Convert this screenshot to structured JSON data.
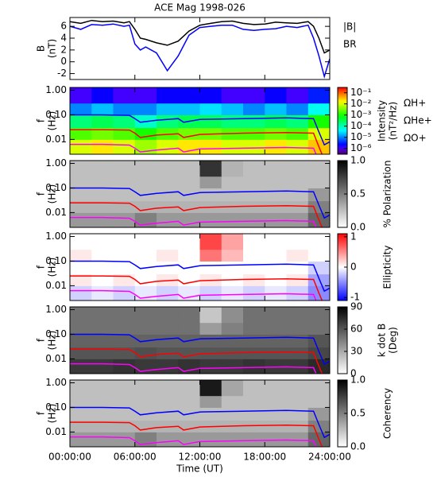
{
  "chart_data": [
    {
      "type": "line",
      "title": "ACE Mag 1998-026",
      "ylabel": [
        "B",
        "(nT)"
      ],
      "xlim": [
        0,
        24
      ],
      "xticks": [
        0,
        6,
        12,
        18,
        24
      ],
      "ylim": [
        -3,
        7.5
      ],
      "yticks": [
        -2,
        0,
        2,
        4,
        6
      ],
      "x": [
        0,
        1,
        2,
        3,
        4,
        5,
        5.5,
        6,
        6.5,
        7,
        8,
        9,
        10,
        11,
        12,
        13,
        14,
        15,
        16,
        17,
        18,
        19,
        20,
        21,
        22,
        22.5,
        23,
        23.5,
        24
      ],
      "series": [
        {
          "name": "|B|",
          "color": "#000000",
          "values": [
            6.8,
            6.5,
            7,
            6.8,
            6.9,
            6.6,
            6.8,
            5.5,
            4,
            3.8,
            3.2,
            2.8,
            3.5,
            5.2,
            6.2,
            6.5,
            6.8,
            6.9,
            6.5,
            6.3,
            6.4,
            6.7,
            6.6,
            6.5,
            6.8,
            6,
            4,
            1.5,
            2
          ]
        },
        {
          "name": "BR",
          "color": "#0000ff",
          "values": [
            6,
            5.5,
            6.3,
            6.2,
            6.4,
            6,
            6.2,
            3,
            2,
            2.5,
            1.5,
            -1.5,
            1,
            4.5,
            5.8,
            6,
            6.2,
            6.2,
            5.5,
            5.3,
            5.5,
            5.6,
            6,
            5.8,
            6.2,
            4,
            1,
            -2.5,
            0.5
          ]
        }
      ]
    },
    {
      "type": "heatmap",
      "ylabel": [
        "f",
        "(Hz)"
      ],
      "log_y": true,
      "xlim": [
        0,
        24
      ],
      "xticks": [
        0,
        6,
        12,
        18,
        24
      ],
      "ylim": [
        0.0025,
        1.3
      ],
      "yticks": [
        {
          "value": 1,
          "label": "1.00"
        },
        {
          "value": 0.1,
          "label": "0.10"
        },
        {
          "value": 0.01,
          "label": "0.01"
        }
      ],
      "xbins": [
        0,
        2,
        4,
        6,
        8,
        10,
        12,
        14,
        16,
        18,
        20,
        22,
        24
      ],
      "ybins": [
        0.0025,
        0.01,
        0.03,
        0.1,
        0.3,
        1.3
      ],
      "z": [
        [
          0.01,
          0.02,
          0.01,
          0.005,
          0.01,
          0.02,
          0.02,
          0.01,
          0.01,
          0.02,
          0.01,
          0.03
        ],
        [
          0.002,
          0.003,
          0.002,
          0.001,
          0.002,
          0.003,
          0.003,
          0.002,
          0.002,
          0.003,
          0.002,
          0.01
        ],
        [
          0.0002,
          0.0003,
          0.0002,
          8e-05,
          0.0002,
          0.0003,
          0.0003,
          0.0002,
          0.0002,
          0.0003,
          0.0002,
          0.001
        ],
        [
          1e-05,
          2e-05,
          1e-05,
          1e-05,
          2e-05,
          2e-05,
          3e-05,
          2e-05,
          1e-05,
          2e-05,
          1e-05,
          5e-05
        ],
        [
          1e-06,
          2e-06,
          1e-06,
          1e-06,
          2e-06,
          2e-06,
          2e-06,
          1e-06,
          1e-06,
          2e-06,
          1e-06,
          3e-06
        ]
      ],
      "colorbar": {
        "label": [
          "Intensity",
          "(nT²/Hz)"
        ],
        "colormap": "rainbow",
        "log": true,
        "lim": [
          3e-07,
          0.3
        ],
        "ticks": [
          {
            "value": 0.1,
            "label": "10⁻¹"
          },
          {
            "value": 0.01,
            "label": "10⁻²"
          },
          {
            "value": 0.001,
            "label": "10⁻³"
          },
          {
            "value": 0.0001,
            "label": "10⁻⁴"
          },
          {
            "value": 1e-05,
            "label": "10⁻⁵"
          },
          {
            "value": 1e-06,
            "label": "10⁻⁶"
          }
        ]
      },
      "x": [
        0,
        3,
        5.5,
        6,
        6.5,
        8,
        10,
        10.5,
        12,
        16,
        20,
        22.5,
        23,
        23.5,
        24
      ],
      "series": [
        {
          "name": "ΩH+",
          "color": "#0000ff",
          "values": [
            0.1,
            0.1,
            0.095,
            0.07,
            0.05,
            0.06,
            0.07,
            0.05,
            0.065,
            0.07,
            0.075,
            0.07,
            0.02,
            0.006,
            0.008
          ]
        },
        {
          "name": "ΩHe+",
          "color": "#ff0000",
          "values": [
            0.025,
            0.025,
            0.024,
            0.018,
            0.012,
            0.015,
            0.017,
            0.012,
            0.016,
            0.018,
            0.019,
            0.018,
            0.005,
            0.0015,
            0.002
          ]
        },
        {
          "name": "ΩO+",
          "color": "#ff00ff",
          "values": [
            0.0063,
            0.0063,
            0.0059,
            0.0044,
            0.0031,
            0.0037,
            0.0044,
            0.0031,
            0.0041,
            0.0044,
            0.0047,
            0.0044,
            0.0013,
            0.0004,
            0.0005
          ]
        }
      ]
    },
    {
      "type": "heatmap",
      "ylabel": [
        "f",
        "(Hz)"
      ],
      "log_y": true,
      "xlim": [
        0,
        24
      ],
      "xticks": [
        0,
        6,
        12,
        18,
        24
      ],
      "ylim": [
        0.0025,
        1.3
      ],
      "yticks": [
        {
          "value": 1,
          "label": "1.00"
        },
        {
          "value": 0.1,
          "label": "0.10"
        },
        {
          "value": 0.01,
          "label": "0.01"
        }
      ],
      "xbins": [
        0,
        2,
        4,
        6,
        8,
        10,
        12,
        14,
        16,
        18,
        20,
        22,
        24
      ],
      "ybins": [
        0.0025,
        0.01,
        0.03,
        0.1,
        0.3,
        1.3
      ],
      "z": [
        [
          0.4,
          0.4,
          0.4,
          0.5,
          0.4,
          0.4,
          0.4,
          0.4,
          0.4,
          0.4,
          0.4,
          0.6
        ],
        [
          0.3,
          0.3,
          0.3,
          0.3,
          0.3,
          0.3,
          0.3,
          0.3,
          0.3,
          0.3,
          0.3,
          0.5
        ],
        [
          0.25,
          0.25,
          0.25,
          0.25,
          0.25,
          0.25,
          0.25,
          0.25,
          0.25,
          0.25,
          0.25,
          0.4
        ],
        [
          0.25,
          0.25,
          0.25,
          0.25,
          0.25,
          0.25,
          0.4,
          0.25,
          0.25,
          0.25,
          0.25,
          0.25
        ],
        [
          0.25,
          0.25,
          0.25,
          0.25,
          0.25,
          0.25,
          0.8,
          0.3,
          0.25,
          0.25,
          0.25,
          0.25
        ]
      ],
      "colorbar": {
        "label": [
          "% Polarization"
        ],
        "colormap": "gray_r",
        "log": false,
        "lim": [
          0,
          1
        ],
        "ticks": [
          {
            "value": 0,
            "label": "0.0"
          },
          {
            "value": 0.5,
            "label": "0.5"
          },
          {
            "value": 1,
            "label": "1.0"
          }
        ]
      }
    },
    {
      "type": "heatmap",
      "ylabel": [
        "f",
        "(Hz)"
      ],
      "log_y": true,
      "xlim": [
        0,
        24
      ],
      "xticks": [
        0,
        6,
        12,
        18,
        24
      ],
      "ylim": [
        0.0025,
        1.3
      ],
      "yticks": [
        {
          "value": 1,
          "label": "1.00"
        },
        {
          "value": 0.1,
          "label": "0.10"
        },
        {
          "value": 0.01,
          "label": "0.01"
        }
      ],
      "xbins": [
        0,
        2,
        4,
        6,
        8,
        10,
        12,
        14,
        16,
        18,
        20,
        22,
        24
      ],
      "ybins": [
        0.0025,
        0.01,
        0.03,
        0.1,
        0.3,
        1.3
      ],
      "z": [
        [
          -0.2,
          -0.1,
          -0.2,
          -0.1,
          -0.2,
          -0.1,
          -0.2,
          -0.1,
          -0.2,
          -0.1,
          -0.2,
          -0.5
        ],
        [
          0.1,
          0,
          0.1,
          0,
          0.1,
          0,
          0.1,
          0,
          0.1,
          0,
          0.1,
          -0.4
        ],
        [
          0,
          0,
          0,
          0,
          0,
          0,
          0,
          0,
          0,
          0,
          0,
          -0.2
        ],
        [
          0.1,
          0,
          0,
          0,
          0.1,
          0,
          0.6,
          0.3,
          0,
          0,
          0.1,
          0
        ],
        [
          0,
          0,
          0,
          0,
          0,
          0,
          0.8,
          0.4,
          0,
          0,
          0,
          0
        ]
      ],
      "colorbar": {
        "label": [
          "Ellipticity"
        ],
        "colormap": "bwr",
        "log": false,
        "lim": [
          -1.1,
          1.1
        ],
        "ticks": [
          -1,
          0,
          1
        ]
      }
    },
    {
      "type": "heatmap",
      "ylabel": [
        "f",
        "(Hz)"
      ],
      "log_y": true,
      "xlim": [
        0,
        24
      ],
      "xticks": [
        0,
        6,
        12,
        18,
        24
      ],
      "ylim": [
        0.0025,
        1.3
      ],
      "yticks": [
        {
          "value": 1,
          "label": "1.00"
        },
        {
          "value": 0.1,
          "label": "0.10"
        },
        {
          "value": 0.01,
          "label": "0.01"
        }
      ],
      "xbins": [
        0,
        2,
        4,
        6,
        8,
        10,
        12,
        14,
        16,
        18,
        20,
        22,
        24
      ],
      "ybins": [
        0.0025,
        0.01,
        0.03,
        0.1,
        0.3,
        1.3
      ],
      "z": [
        [
          70,
          70,
          72,
          70,
          70,
          72,
          70,
          70,
          72,
          70,
          70,
          75
        ],
        [
          60,
          60,
          60,
          62,
          60,
          60,
          60,
          60,
          60,
          60,
          60,
          65
        ],
        [
          55,
          55,
          55,
          55,
          55,
          55,
          55,
          55,
          55,
          55,
          55,
          60
        ],
        [
          50,
          50,
          50,
          50,
          50,
          50,
          35,
          45,
          50,
          50,
          50,
          50
        ],
        [
          50,
          50,
          50,
          50,
          50,
          50,
          20,
          40,
          50,
          50,
          50,
          50
        ]
      ],
      "colorbar": {
        "label": [
          "k dot B",
          "(Deg)"
        ],
        "colormap": "gray_r",
        "log": false,
        "lim": [
          0,
          90
        ],
        "ticks": [
          0,
          30,
          60,
          90
        ]
      }
    },
    {
      "type": "heatmap",
      "ylabel": [
        "f",
        "(Hz)"
      ],
      "log_y": true,
      "xlabel": "Time (UT)",
      "xlim": [
        0,
        24
      ],
      "xticks": [
        {
          "value": 0,
          "label": "00:00:00"
        },
        {
          "value": 6,
          "label": "06:00:00"
        },
        {
          "value": 12,
          "label": "12:00:00"
        },
        {
          "value": 18,
          "label": "18:00:00"
        },
        {
          "value": 24,
          "label": "24:00:00"
        }
      ],
      "ylim": [
        0.0025,
        1.3
      ],
      "yticks": [
        {
          "value": 1,
          "label": "1.00"
        },
        {
          "value": 0.1,
          "label": "0.10"
        },
        {
          "value": 0.01,
          "label": "0.01"
        }
      ],
      "xbins": [
        0,
        2,
        4,
        6,
        8,
        10,
        12,
        14,
        16,
        18,
        20,
        22,
        24
      ],
      "ybins": [
        0.0025,
        0.01,
        0.03,
        0.1,
        0.3,
        1.3
      ],
      "z": [
        [
          0.4,
          0.4,
          0.4,
          0.5,
          0.4,
          0.4,
          0.4,
          0.4,
          0.4,
          0.4,
          0.4,
          0.6
        ],
        [
          0.3,
          0.3,
          0.3,
          0.3,
          0.3,
          0.3,
          0.3,
          0.3,
          0.3,
          0.3,
          0.3,
          0.5
        ],
        [
          0.25,
          0.25,
          0.25,
          0.25,
          0.25,
          0.25,
          0.25,
          0.25,
          0.25,
          0.25,
          0.25,
          0.4
        ],
        [
          0.25,
          0.25,
          0.25,
          0.25,
          0.25,
          0.25,
          0.4,
          0.25,
          0.25,
          0.25,
          0.25,
          0.25
        ],
        [
          0.25,
          0.25,
          0.25,
          0.25,
          0.25,
          0.25,
          0.9,
          0.35,
          0.25,
          0.25,
          0.25,
          0.25
        ]
      ],
      "colorbar": {
        "label": [
          "Coherency"
        ],
        "colormap": "gray_r",
        "log": false,
        "lim": [
          0,
          1
        ],
        "ticks": [
          {
            "value": 0,
            "label": "0.0"
          },
          {
            "value": 0.5,
            "label": "0.5"
          },
          {
            "value": 1,
            "label": "1.0"
          }
        ]
      }
    }
  ]
}
